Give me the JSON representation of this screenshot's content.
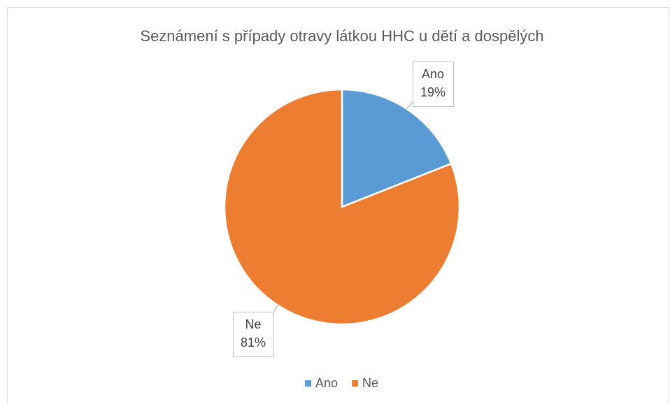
{
  "chart_data": {
    "type": "pie",
    "title": "Seznámení s případy otravy látkou HHC u dětí a dospělých",
    "categories": [
      "Ano",
      "Ne"
    ],
    "values": [
      19,
      81
    ],
    "value_labels": [
      "19%",
      "81%"
    ],
    "colors": [
      "#5b9bd5",
      "#ed7d31"
    ],
    "legend": "bottom"
  }
}
